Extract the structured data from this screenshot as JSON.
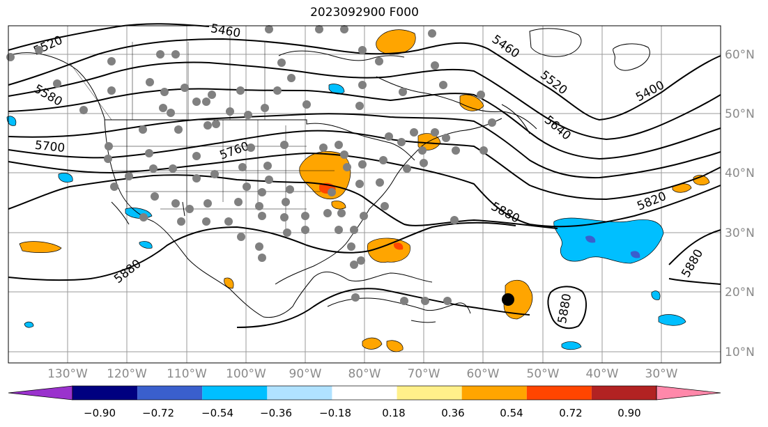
{
  "title": "2023092900 F000",
  "latitude_labels": [
    "60°N",
    "50°N",
    "40°N",
    "30°N",
    "20°N",
    "10°N"
  ],
  "longitude_labels": [
    "130°W",
    "120°W",
    "110°W",
    "100°W",
    "90°W",
    "80°W",
    "70°W",
    "60°W",
    "50°W",
    "40°W",
    "30°W"
  ],
  "contour_labels": [
    "5520",
    "5460",
    "5460",
    "5520",
    "5400",
    "5580",
    "5640",
    "5700",
    "5760",
    "5820",
    "5880",
    "5880",
    "5880",
    "5880"
  ],
  "colorbar": {
    "ticks": [
      "−0.90",
      "−0.72",
      "−0.54",
      "−0.36",
      "−0.18",
      "0.18",
      "0.36",
      "0.54",
      "0.72",
      "0.90"
    ],
    "colors": [
      "#9a32cd",
      "#000080",
      "#3a5fcd",
      "#00bfff",
      "#b0e2ff",
      "#ffffff",
      "#fff08a",
      "#ffa500",
      "#ff4500",
      "#b22222",
      "#ff88aa"
    ]
  },
  "colors": {
    "land_ocean": "#ffffff",
    "contour": "#000000",
    "grid": "#9a9a9a",
    "station_dot": "#808080",
    "storm_marker": "#000000",
    "positive_anomaly": "#ffa500",
    "negative_anomaly": "#00bfff"
  },
  "icons": [
    "storm-center-marker"
  ]
}
